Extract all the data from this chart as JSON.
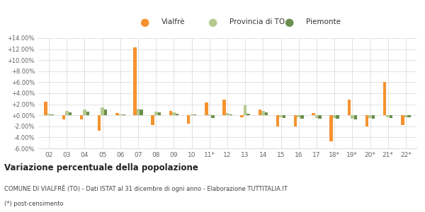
{
  "years": [
    "02",
    "03",
    "04",
    "05",
    "06",
    "07",
    "08",
    "09",
    "10",
    "11*",
    "12",
    "13",
    "14",
    "15",
    "16",
    "17",
    "18*",
    "19*",
    "20*",
    "21*",
    "22*"
  ],
  "vialfre": [
    2.5,
    -0.8,
    -0.8,
    -2.8,
    0.4,
    12.3,
    -1.8,
    0.8,
    -1.5,
    2.3,
    2.8,
    -0.3,
    1.1,
    -2.0,
    -2.0,
    0.4,
    -4.7,
    2.9,
    -2.0,
    6.0,
    -1.8
  ],
  "provincia_to": [
    0.3,
    0.8,
    1.1,
    1.4,
    0.2,
    1.2,
    0.7,
    0.5,
    0.2,
    0.1,
    0.4,
    1.8,
    0.8,
    -0.3,
    -0.4,
    -0.5,
    -0.5,
    -0.6,
    -0.5,
    -0.4,
    -0.3
  ],
  "piemonte": [
    0.1,
    0.5,
    0.7,
    1.0,
    0.1,
    1.0,
    0.5,
    0.3,
    0.1,
    -0.5,
    0.1,
    0.3,
    0.5,
    -0.5,
    -0.6,
    -0.6,
    -0.6,
    -0.8,
    -0.6,
    -0.5,
    -0.4
  ],
  "vialfre_color": "#f5922f",
  "provincia_color": "#b5c98e",
  "piemonte_color": "#6a8f4e",
  "bg_color": "#ffffff",
  "grid_color": "#dddddd",
  "ylim": [
    -6.0,
    14.0
  ],
  "yticks": [
    -6.0,
    -4.0,
    -2.0,
    0.0,
    2.0,
    4.0,
    6.0,
    8.0,
    10.0,
    12.0,
    14.0
  ],
  "title": "Variazione percentuale della popolazione",
  "legend_labels": [
    "Vialfrè",
    "Provincia di TO",
    "Piemonte"
  ],
  "footnote1": "COMUNE DI VIALFRÈ (TO) - Dati ISTAT al 31 dicembre di ogni anno - Elaborazione TUTTITALIA.IT",
  "footnote2": "(*) post-censimento"
}
